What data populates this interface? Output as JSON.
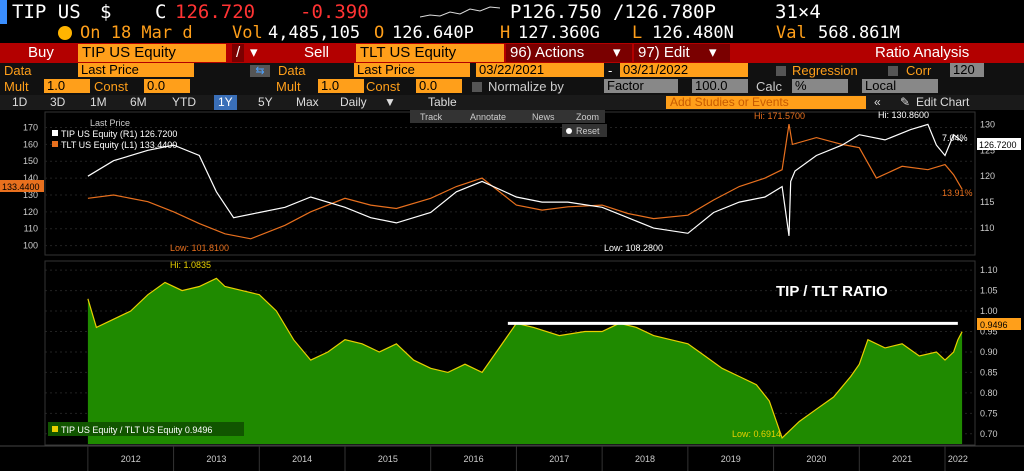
{
  "quote": {
    "ticker": "TIP US",
    "currency": "$",
    "c_label": "C",
    "last": "126.720",
    "change": "-0.390",
    "bidask": "P126.750 /126.780P",
    "size": "31×4",
    "on_date": "On 18 Mar d",
    "vol_label": "Vol",
    "volume": "4,485,105",
    "open_label": "O",
    "open": "126.640P",
    "high_label": "H",
    "high": "127.360G",
    "low_label": "L",
    "low": "126.480N",
    "val_label": "Val",
    "val": "568.861M"
  },
  "toolbar": {
    "buy": "Buy",
    "security1": "TIP US Equity",
    "slash": "/",
    "sell": "Sell",
    "security2": "TLT US Equity",
    "actions": "96) Actions",
    "edit": "97) Edit",
    "title": "Ratio Analysis"
  },
  "settings1": {
    "data_label": "Data",
    "data_value": "Last Price",
    "data2_label": "Data",
    "data2_value": "Last Price",
    "start_date": "03/22/2021",
    "dash": "-",
    "end_date": "03/21/2022",
    "regression": "Regression",
    "corr": "Corr",
    "corr_value": "120"
  },
  "settings2": {
    "mult_label": "Mult",
    "mult_value": "1.0",
    "const_label": "Const",
    "const_value": "0.0",
    "mult2_label": "Mult",
    "mult2_value": "1.0",
    "const2_label": "Const",
    "const2_value": "0.0",
    "normalize_label": "Normalize by",
    "normalize_value": "Factor",
    "normalize_num": "100.0",
    "calc_label": "Calc",
    "calc_value": "%",
    "local_value": "Local"
  },
  "periods": {
    "tabs": [
      "1D",
      "3D",
      "1M",
      "6M",
      "YTD",
      "1Y",
      "5Y",
      "Max"
    ],
    "active_tab": "1Y",
    "daily": "Daily",
    "table": "Table",
    "studies_placeholder": "Add Studies or Events",
    "edit_chart": "Edit Chart"
  },
  "chart_tools": {
    "track": "Track",
    "annotate": "Annotate",
    "news": "News",
    "zoom": "Zoom",
    "reset": "Reset"
  },
  "colors": {
    "tip": "#ffffff",
    "tlt": "#e8701e",
    "ratio_fill": "#1f8a00",
    "ratio_line": "#e8d000",
    "orange": "#ff9f1a",
    "header_red": "#b30000"
  },
  "chart_data": [
    {
      "type": "line",
      "legend_title": "Last Price",
      "series": [
        {
          "name": "TIP US Equity (R1) 126.7200",
          "axis": "right",
          "x": [
            2012.0,
            2012.3,
            2012.7,
            2013.0,
            2013.3,
            2013.5,
            2013.7,
            2014.0,
            2014.3,
            2014.6,
            2015.0,
            2015.3,
            2015.6,
            2016.0,
            2016.3,
            2016.6,
            2017.0,
            2017.3,
            2017.6,
            2018.0,
            2018.3,
            2018.6,
            2019.0,
            2019.3,
            2019.6,
            2019.9,
            2020.1,
            2020.18,
            2020.2,
            2020.25,
            2020.5,
            2020.8,
            2021.0,
            2021.3,
            2021.6,
            2021.8,
            2021.9,
            2022.0,
            2022.1,
            2022.2
          ],
          "y": [
            120,
            123,
            125,
            126,
            124,
            117,
            112,
            113,
            114,
            116,
            114,
            112,
            111,
            113,
            117,
            119,
            116,
            115,
            115,
            114,
            112,
            110,
            109,
            113,
            115,
            116,
            118,
            108.5,
            119,
            121,
            124,
            126,
            128,
            127,
            129,
            130,
            126,
            124,
            128,
            126.72
          ]
        },
        {
          "name": "TLT US Equity (L1) 133.4400",
          "axis": "left",
          "x": [
            2012.0,
            2012.3,
            2012.7,
            2013.0,
            2013.3,
            2013.6,
            2013.9,
            2014.3,
            2014.6,
            2015.0,
            2015.3,
            2015.6,
            2016.0,
            2016.3,
            2016.6,
            2017.0,
            2017.3,
            2017.6,
            2018.0,
            2018.3,
            2018.6,
            2019.0,
            2019.3,
            2019.6,
            2019.9,
            2020.1,
            2020.18,
            2020.22,
            2020.5,
            2020.8,
            2021.0,
            2021.2,
            2021.5,
            2021.8,
            2022.0,
            2022.1,
            2022.2
          ],
          "y": [
            128,
            130,
            126,
            120,
            113,
            107,
            104,
            112,
            120,
            128,
            124,
            122,
            128,
            135,
            140,
            124,
            121,
            123,
            124,
            119,
            116,
            118,
            127,
            135,
            140,
            145,
            172,
            160,
            164,
            160,
            158,
            140,
            147,
            145,
            148,
            142,
            133.44
          ]
        }
      ],
      "left_axis_ticks": [
        100,
        110,
        120,
        130,
        140,
        150,
        160,
        170
      ],
      "right_axis_ticks": [
        110,
        115,
        120,
        125,
        130
      ],
      "ylim_left": [
        95,
        178
      ],
      "ylim_right": [
        105,
        132
      ],
      "annotations": {
        "tip_hi": "Hi: 130.8600",
        "tip_low": "Low: 108.2800",
        "tlt_hi": "Hi: 171.5700",
        "tlt_low": "Low: 101.8100",
        "tip_pct": "7.04%",
        "tlt_pct": "13.91%",
        "tip_last": "126.7200",
        "tlt_last": "133.4400"
      }
    },
    {
      "type": "area",
      "title": "TIP / TLT RATIO",
      "series": [
        {
          "name": "TIP US Equity / TLT US Equity 0.9496",
          "x": [
            2012.0,
            2012.1,
            2012.3,
            2012.5,
            2012.7,
            2012.9,
            2013.1,
            2013.3,
            2013.5,
            2013.6,
            2013.8,
            2014.0,
            2014.2,
            2014.4,
            2014.6,
            2014.8,
            2015.0,
            2015.2,
            2015.4,
            2015.6,
            2015.8,
            2016.0,
            2016.2,
            2016.4,
            2016.6,
            2016.8,
            2017.0,
            2017.2,
            2017.5,
            2017.8,
            2018.0,
            2018.2,
            2018.4,
            2018.6,
            2018.8,
            2019.0,
            2019.2,
            2019.4,
            2019.6,
            2019.8,
            2019.95,
            2020.1,
            2020.3,
            2020.5,
            2020.7,
            2020.9,
            2021.0,
            2021.1,
            2021.3,
            2021.5,
            2021.7,
            2021.9,
            2022.0,
            2022.1,
            2022.15,
            2022.2
          ],
          "y": [
            1.03,
            0.96,
            0.98,
            1.0,
            1.04,
            1.07,
            1.05,
            1.06,
            1.08,
            1.06,
            1.05,
            1.04,
            1.0,
            0.93,
            0.88,
            0.9,
            0.93,
            0.92,
            0.9,
            0.92,
            0.88,
            0.86,
            0.85,
            0.87,
            0.85,
            0.91,
            0.97,
            0.96,
            0.94,
            0.95,
            0.95,
            0.97,
            0.96,
            0.94,
            0.93,
            0.92,
            0.89,
            0.86,
            0.84,
            0.82,
            0.78,
            0.69,
            0.73,
            0.76,
            0.79,
            0.84,
            0.87,
            0.93,
            0.91,
            0.92,
            0.89,
            0.9,
            0.88,
            0.9,
            0.93,
            0.9496
          ]
        }
      ],
      "y_ticks": [
        0.7,
        0.75,
        0.8,
        0.85,
        0.9,
        0.95,
        1.0,
        1.05,
        1.1
      ],
      "ylim": [
        0.675,
        1.115
      ],
      "reference_line": 0.97,
      "annotations": {
        "hi": "Hi: 1.0835",
        "low": "Low: 0.6914",
        "last": "0.9496"
      }
    }
  ],
  "x_axis": {
    "labels": [
      "2012",
      "2013",
      "2014",
      "2015",
      "2016",
      "2017",
      "2018",
      "2019",
      "2020",
      "2021",
      "2022"
    ],
    "xlim": [
      2011.5,
      2022.35
    ]
  }
}
